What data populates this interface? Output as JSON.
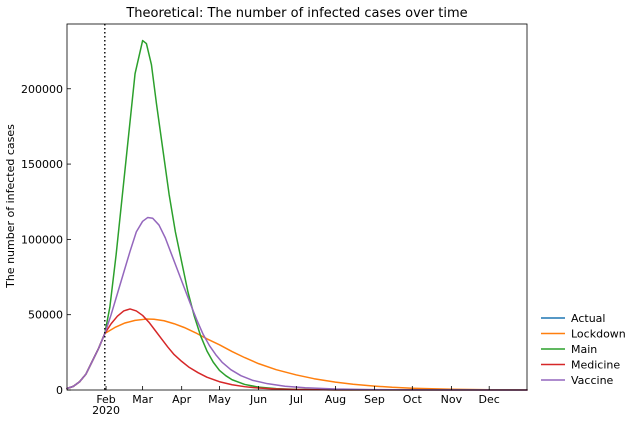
{
  "chart_data": {
    "type": "line",
    "title": "Theoretical: The number of infected cases over time",
    "xlabel": "",
    "ylabel": "The number of infected cases",
    "x_unit": "date",
    "xlim": [
      "2020-01-01",
      "2020-12-31"
    ],
    "ylim": [
      0,
      243000
    ],
    "x_ticks": [
      {
        "date": "2020-02-01",
        "label": "Feb"
      },
      {
        "date": "2020-03-01",
        "label": "Mar"
      },
      {
        "date": "2020-04-01",
        "label": "Apr"
      },
      {
        "date": "2020-05-01",
        "label": "May"
      },
      {
        "date": "2020-06-01",
        "label": "Jun"
      },
      {
        "date": "2020-07-01",
        "label": "Jul"
      },
      {
        "date": "2020-08-01",
        "label": "Aug"
      },
      {
        "date": "2020-09-01",
        "label": "Sep"
      },
      {
        "date": "2020-10-01",
        "label": "Oct"
      },
      {
        "date": "2020-11-01",
        "label": "Nov"
      },
      {
        "date": "2020-12-01",
        "label": "Dec"
      }
    ],
    "x_year_label": "2020",
    "y_ticks": [
      0,
      50000,
      100000,
      150000,
      200000
    ],
    "vline": {
      "date": "2020-01-31",
      "style": "dotted",
      "color": "#000000"
    },
    "grid": false,
    "legend_position": "outside-bottom-right",
    "series": [
      {
        "name": "Actual",
        "color": "#1f77b4",
        "points": [
          [
            "2020-01-01",
            1000
          ],
          [
            "2020-01-06",
            2400
          ],
          [
            "2020-01-11",
            5500
          ],
          [
            "2020-01-16",
            10500
          ],
          [
            "2020-01-21",
            19000
          ],
          [
            "2020-01-26",
            27500
          ],
          [
            "2020-01-31",
            37500
          ]
        ]
      },
      {
        "name": "Lockdown",
        "color": "#ff7f0e",
        "points": [
          [
            "2020-01-01",
            1000
          ],
          [
            "2020-01-06",
            2400
          ],
          [
            "2020-01-11",
            5500
          ],
          [
            "2020-01-16",
            10500
          ],
          [
            "2020-01-21",
            19000
          ],
          [
            "2020-01-26",
            27500
          ],
          [
            "2020-01-31",
            37500
          ],
          [
            "2020-02-08",
            41500
          ],
          [
            "2020-02-16",
            44500
          ],
          [
            "2020-02-24",
            46200
          ],
          [
            "2020-03-04",
            47100
          ],
          [
            "2020-03-10",
            47000
          ],
          [
            "2020-03-18",
            46000
          ],
          [
            "2020-03-26",
            44000
          ],
          [
            "2020-04-03",
            41500
          ],
          [
            "2020-04-12",
            38000
          ],
          [
            "2020-04-21",
            34000
          ],
          [
            "2020-05-01",
            30000
          ],
          [
            "2020-05-11",
            25500
          ],
          [
            "2020-05-21",
            21500
          ],
          [
            "2020-06-01",
            17500
          ],
          [
            "2020-06-15",
            13500
          ],
          [
            "2020-07-01",
            10000
          ],
          [
            "2020-07-15",
            7500
          ],
          [
            "2020-08-01",
            5200
          ],
          [
            "2020-08-15",
            3800
          ],
          [
            "2020-09-01",
            2600
          ],
          [
            "2020-09-15",
            1800
          ],
          [
            "2020-10-01",
            1200
          ],
          [
            "2020-11-01",
            500
          ],
          [
            "2020-12-01",
            200
          ],
          [
            "2020-12-31",
            100
          ]
        ]
      },
      {
        "name": "Main",
        "color": "#2ca02c",
        "points": [
          [
            "2020-01-01",
            1000
          ],
          [
            "2020-01-06",
            2400
          ],
          [
            "2020-01-11",
            5500
          ],
          [
            "2020-01-16",
            10500
          ],
          [
            "2020-01-21",
            19000
          ],
          [
            "2020-01-26",
            27500
          ],
          [
            "2020-01-31",
            37500
          ],
          [
            "2020-02-04",
            55000
          ],
          [
            "2020-02-09",
            90000
          ],
          [
            "2020-02-14",
            130000
          ],
          [
            "2020-02-19",
            170000
          ],
          [
            "2020-02-24",
            210000
          ],
          [
            "2020-03-01",
            232000
          ],
          [
            "2020-03-04",
            230000
          ],
          [
            "2020-03-08",
            216000
          ],
          [
            "2020-03-12",
            190000
          ],
          [
            "2020-03-17",
            160000
          ],
          [
            "2020-03-22",
            130000
          ],
          [
            "2020-03-27",
            105000
          ],
          [
            "2020-04-01",
            85000
          ],
          [
            "2020-04-06",
            65000
          ],
          [
            "2020-04-11",
            49000
          ],
          [
            "2020-04-16",
            36000
          ],
          [
            "2020-04-21",
            26000
          ],
          [
            "2020-04-26",
            18500
          ],
          [
            "2020-05-01",
            13000
          ],
          [
            "2020-05-06",
            9500
          ],
          [
            "2020-05-11",
            6800
          ],
          [
            "2020-05-21",
            3700
          ],
          [
            "2020-06-01",
            1900
          ],
          [
            "2020-06-15",
            900
          ],
          [
            "2020-07-01",
            400
          ],
          [
            "2020-08-01",
            100
          ],
          [
            "2020-12-31",
            0
          ]
        ]
      },
      {
        "name": "Medicine",
        "color": "#d62728",
        "points": [
          [
            "2020-01-01",
            1000
          ],
          [
            "2020-01-06",
            2400
          ],
          [
            "2020-01-11",
            5500
          ],
          [
            "2020-01-16",
            10500
          ],
          [
            "2020-01-21",
            19000
          ],
          [
            "2020-01-26",
            27500
          ],
          [
            "2020-01-31",
            37500
          ],
          [
            "2020-02-05",
            44000
          ],
          [
            "2020-02-10",
            49000
          ],
          [
            "2020-02-15",
            52500
          ],
          [
            "2020-02-20",
            53800
          ],
          [
            "2020-02-25",
            52500
          ],
          [
            "2020-03-01",
            49500
          ],
          [
            "2020-03-06",
            45000
          ],
          [
            "2020-03-11",
            39500
          ],
          [
            "2020-03-16",
            34000
          ],
          [
            "2020-03-21",
            28500
          ],
          [
            "2020-03-26",
            23500
          ],
          [
            "2020-04-01",
            19000
          ],
          [
            "2020-04-07",
            15000
          ],
          [
            "2020-04-14",
            11500
          ],
          [
            "2020-04-21",
            8500
          ],
          [
            "2020-05-01",
            5500
          ],
          [
            "2020-05-11",
            3500
          ],
          [
            "2020-05-21",
            2200
          ],
          [
            "2020-06-01",
            1300
          ],
          [
            "2020-06-15",
            700
          ],
          [
            "2020-07-01",
            300
          ],
          [
            "2020-08-01",
            80
          ],
          [
            "2020-12-31",
            0
          ]
        ]
      },
      {
        "name": "Vaccine",
        "color": "#9467bd",
        "points": [
          [
            "2020-01-01",
            1000
          ],
          [
            "2020-01-06",
            2400
          ],
          [
            "2020-01-11",
            5500
          ],
          [
            "2020-01-16",
            10500
          ],
          [
            "2020-01-21",
            19000
          ],
          [
            "2020-01-26",
            27500
          ],
          [
            "2020-01-31",
            37500
          ],
          [
            "2020-02-05",
            50000
          ],
          [
            "2020-02-10",
            64000
          ],
          [
            "2020-02-15",
            78000
          ],
          [
            "2020-02-20",
            92000
          ],
          [
            "2020-02-25",
            105000
          ],
          [
            "2020-03-01",
            112000
          ],
          [
            "2020-03-05",
            114500
          ],
          [
            "2020-03-09",
            114000
          ],
          [
            "2020-03-14",
            109500
          ],
          [
            "2020-03-19",
            101000
          ],
          [
            "2020-03-24",
            90000
          ],
          [
            "2020-03-29",
            79000
          ],
          [
            "2020-04-03",
            68000
          ],
          [
            "2020-04-08",
            57000
          ],
          [
            "2020-04-13",
            46500
          ],
          [
            "2020-04-18",
            37000
          ],
          [
            "2020-04-23",
            29500
          ],
          [
            "2020-04-28",
            23500
          ],
          [
            "2020-05-03",
            18500
          ],
          [
            "2020-05-10",
            13500
          ],
          [
            "2020-05-18",
            9500
          ],
          [
            "2020-05-27",
            6500
          ],
          [
            "2020-06-08",
            4200
          ],
          [
            "2020-06-22",
            2500
          ],
          [
            "2020-07-08",
            1500
          ],
          [
            "2020-08-01",
            700
          ],
          [
            "2020-09-01",
            250
          ],
          [
            "2020-10-01",
            100
          ],
          [
            "2020-12-31",
            0
          ]
        ]
      }
    ]
  }
}
